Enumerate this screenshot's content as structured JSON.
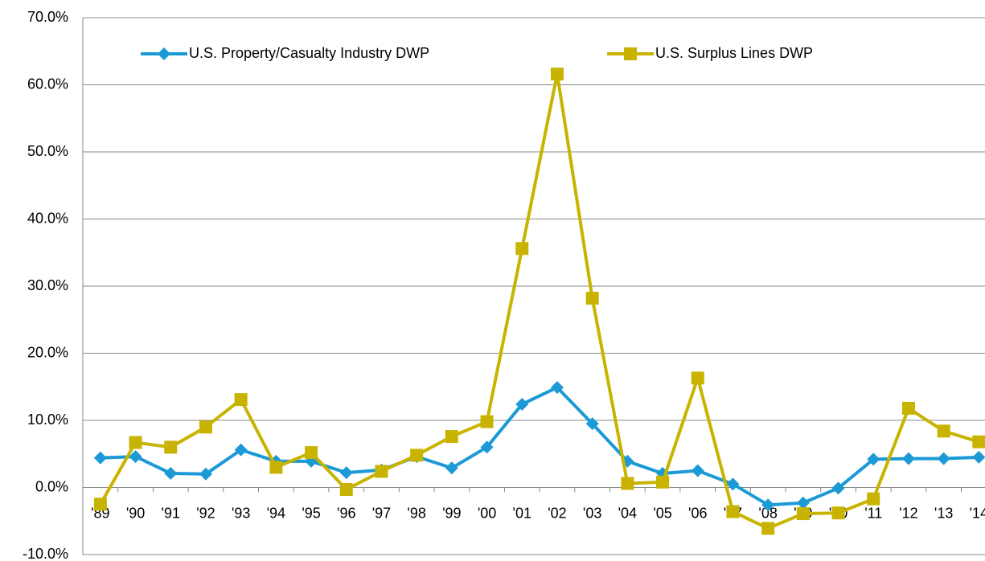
{
  "chart_data": {
    "type": "line",
    "categories": [
      "'89",
      "'90",
      "'91",
      "'92",
      "'93",
      "'94",
      "'95",
      "'96",
      "'97",
      "'98",
      "'99",
      "'00",
      "'01",
      "'02",
      "'03",
      "'04",
      "'05",
      "'06",
      "'07",
      "'08",
      "'09",
      "'10",
      "'11",
      "'12",
      "'13",
      "'14"
    ],
    "series": [
      {
        "name": "U.S. Property/Casualty Industry DWP",
        "color": "#1b9ad6",
        "marker": "diamond",
        "values": [
          4.4,
          4.6,
          2.1,
          2.0,
          5.6,
          3.9,
          3.9,
          2.2,
          2.6,
          4.6,
          2.9,
          6.0,
          12.4,
          14.9,
          9.5,
          3.9,
          2.1,
          2.5,
          0.5,
          -2.6,
          -2.3,
          -0.1,
          4.2,
          4.3,
          4.3,
          4.5
        ]
      },
      {
        "name": "U.S. Surplus Lines DWP",
        "color": "#c8b400",
        "marker": "square",
        "values": [
          -2.5,
          6.7,
          6.0,
          9.0,
          13.1,
          3.0,
          5.2,
          -0.3,
          2.4,
          4.8,
          7.6,
          9.8,
          35.6,
          61.6,
          28.2,
          0.6,
          0.8,
          16.3,
          -3.6,
          -6.1,
          -3.9,
          -3.8,
          -1.7,
          11.8,
          8.4,
          6.8
        ]
      }
    ],
    "ylim": [
      -10,
      70
    ],
    "yticks": [
      {
        "value": -10,
        "label": "-10.0%"
      },
      {
        "value": 0,
        "label": "0.0%"
      },
      {
        "value": 10,
        "label": "10.0%"
      },
      {
        "value": 20,
        "label": "20.0%"
      },
      {
        "value": 30,
        "label": "30.0%"
      },
      {
        "value": 40,
        "label": "40.0%"
      },
      {
        "value": 50,
        "label": "50.0%"
      },
      {
        "value": 60,
        "label": "60.0%"
      },
      {
        "value": 70,
        "label": "70.0%"
      }
    ],
    "grid": true,
    "legend": "top"
  }
}
